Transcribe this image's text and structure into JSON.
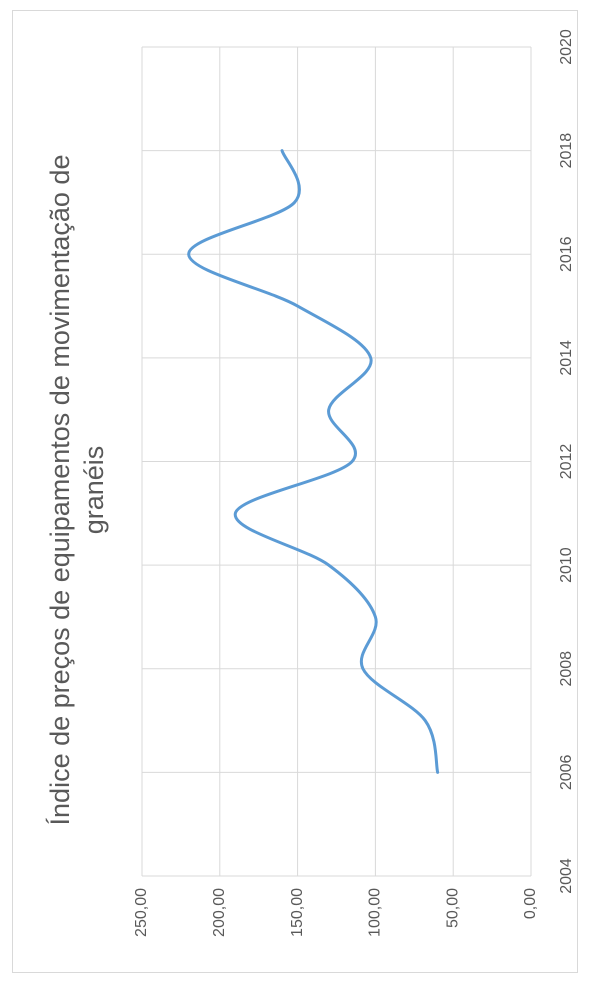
{
  "chart_data": {
    "type": "line",
    "orientation": "rotated-90-clockwise",
    "title_lines": [
      "Índice de preços de equipamentos de movimentação de",
      "granéis"
    ],
    "xlabel": "",
    "ylabel": "",
    "x_ticks": [
      "2004",
      "2006",
      "2008",
      "2010",
      "2012",
      "2014",
      "2016",
      "2018",
      "2020"
    ],
    "y_ticks": [
      "0,00",
      "50,00",
      "100,00",
      "150,00",
      "200,00",
      "250,00"
    ],
    "xlim": [
      2004,
      2020
    ],
    "ylim": [
      0,
      250
    ],
    "grid": true,
    "line_color": "#5b9bd5",
    "grid_color": "#d9d9d9",
    "x": [
      2006,
      2007,
      2008,
      2009,
      2010,
      2011,
      2012,
      2013,
      2014,
      2015,
      2016,
      2017,
      2018
    ],
    "values": [
      60,
      68,
      108,
      100,
      130,
      190,
      115,
      130,
      103,
      150,
      220,
      152,
      160
    ]
  }
}
